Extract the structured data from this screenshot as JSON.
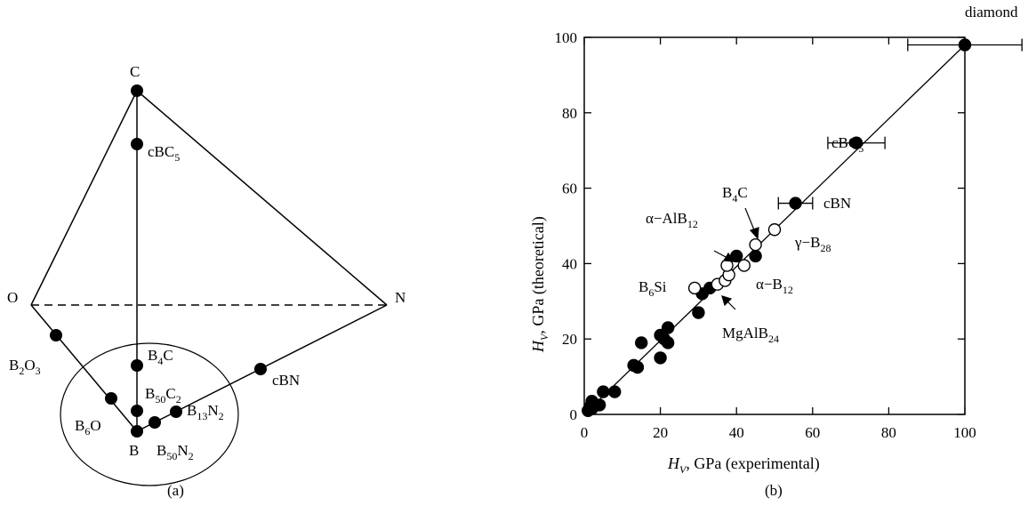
{
  "panel_a": {
    "caption": "(a)",
    "vertices": {
      "C": "C",
      "O": "O",
      "N": "N",
      "B": "B"
    },
    "compounds": {
      "cBC5": {
        "base": "cBC",
        "sub": "5"
      },
      "B4C": {
        "base": "B",
        "sub": "4",
        "tail": "C"
      },
      "B50C2": {
        "base": "B",
        "sub": "50",
        "tail": "C",
        "sub2": "2"
      },
      "B13N2": {
        "base": "B",
        "sub": "13",
        "tail": "N",
        "sub2": "2"
      },
      "B50N2": {
        "base": "B",
        "sub": "50",
        "tail": "N",
        "sub2": "2"
      },
      "B6O": {
        "base": "B",
        "sub": "6",
        "tail": "O"
      },
      "B2O3": {
        "base": "B",
        "sub": "2",
        "tail": "O",
        "sub2": "3"
      },
      "cBN": {
        "base": "cBN"
      }
    }
  },
  "chart_data": {
    "type": "scatter",
    "caption": "(b)",
    "xlabel": {
      "italic": "H",
      "sub": "V",
      "rest": ", GPa (experimental)"
    },
    "ylabel": {
      "italic": "H",
      "sub": "V",
      "rest": ", GPa (theoretical)"
    },
    "xlim": [
      0,
      100
    ],
    "ylim": [
      0,
      100
    ],
    "xticks": [
      "0",
      "20",
      "40",
      "60",
      "80",
      "100"
    ],
    "yticks": [
      "0",
      "20",
      "40",
      "60",
      "80",
      "100"
    ],
    "fit_line": [
      [
        0,
        0
      ],
      [
        100,
        98
      ]
    ],
    "series": [
      {
        "marker": "filled",
        "points": [
          [
            1,
            1
          ],
          [
            1.5,
            2
          ],
          [
            2,
            3.5
          ],
          [
            2,
            1.5
          ],
          [
            3,
            2.5
          ],
          [
            4,
            2.5
          ],
          [
            5,
            6
          ],
          [
            8,
            6
          ],
          [
            13,
            13
          ],
          [
            14,
            12.5
          ],
          [
            15,
            19
          ],
          [
            20,
            15
          ],
          [
            20,
            21
          ],
          [
            21,
            20
          ],
          [
            22,
            19
          ],
          [
            22,
            23
          ],
          [
            30,
            27
          ],
          [
            31,
            32
          ],
          [
            33,
            33.5
          ],
          [
            40,
            42
          ],
          [
            45,
            42
          ],
          [
            55.5,
            56
          ],
          [
            71.5,
            72
          ],
          [
            100,
            98
          ]
        ]
      },
      {
        "marker": "open",
        "points": [
          [
            29,
            33.5
          ],
          [
            35,
            34.5
          ],
          [
            37,
            35.5
          ],
          [
            38,
            37
          ],
          [
            37.5,
            39.5
          ],
          [
            42,
            39.5
          ],
          [
            45,
            45
          ],
          [
            50,
            49
          ]
        ]
      }
    ],
    "error_bars": [
      {
        "x": 55.5,
        "y": 56,
        "xmin": 51,
        "xmax": 60
      },
      {
        "x": 71.5,
        "y": 72,
        "xmin": 64,
        "xmax": 79
      },
      {
        "x": 100,
        "y": 98,
        "xmin": 85,
        "xmax": 115
      }
    ],
    "annotations": {
      "diamond": {
        "text": "diamond"
      },
      "cBC5": {
        "base": "cBC",
        "sub": "5"
      },
      "cBN": {
        "text": "cBN"
      },
      "B4C": {
        "base": "B",
        "sub": "4",
        "tail": "C"
      },
      "aAlB12": {
        "base": "α−AlB",
        "sub": "12"
      },
      "gB28": {
        "base": "γ−B",
        "sub": "28"
      },
      "B6Si": {
        "base": "B",
        "sub": "6",
        "tail": "Si"
      },
      "aB12": {
        "base": "α−B",
        "sub": "12"
      },
      "MgAlB24": {
        "base": "MgAlB",
        "sub": "24"
      }
    }
  }
}
